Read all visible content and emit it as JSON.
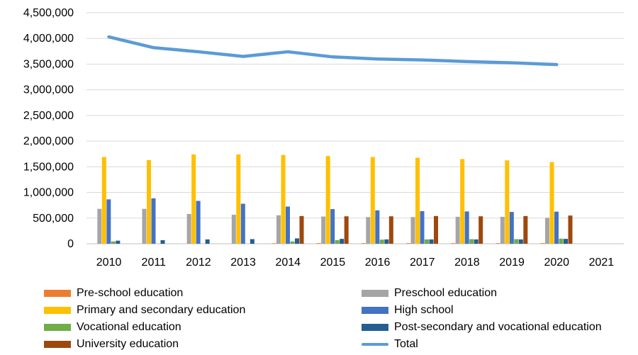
{
  "chart_data": {
    "type": "bar",
    "categories": [
      "2010",
      "2011",
      "2012",
      "2013",
      "2014",
      "2015",
      "2016",
      "2017",
      "2018",
      "2019",
      "2020",
      "2021"
    ],
    "ylim": [
      0,
      4500000
    ],
    "yticks": [
      0,
      500000,
      1000000,
      1500000,
      2000000,
      2500000,
      3000000,
      3500000,
      4000000,
      4500000
    ],
    "ytick_labels": [
      "0",
      "500,000",
      "1,000,000",
      "1,500,000",
      "2,000,000",
      "2,500,000",
      "3,000,000",
      "3,500,000",
      "4,000,000",
      "4,500,000"
    ],
    "grid": true,
    "legend_position": "bottom",
    "series": [
      {
        "name": "Pre-school education",
        "kind": "bar",
        "color": "#ED7D31",
        "values": [
          0,
          0,
          0,
          0,
          10000,
          12000,
          12000,
          12000,
          12000,
          12000,
          12000,
          null
        ]
      },
      {
        "name": "Preschool education",
        "kind": "bar",
        "color": "#A5A5A5",
        "values": [
          680000,
          680000,
          580000,
          565000,
          555000,
          530000,
          520000,
          520000,
          525000,
          525000,
          505000,
          null
        ]
      },
      {
        "name": "Primary and secondary education",
        "kind": "bar",
        "color": "#FFC000",
        "values": [
          1690000,
          1630000,
          1740000,
          1740000,
          1730000,
          1710000,
          1690000,
          1675000,
          1650000,
          1625000,
          1590000,
          null
        ]
      },
      {
        "name": "High school",
        "kind": "bar",
        "color": "#4472C4",
        "values": [
          865000,
          885000,
          835000,
          780000,
          725000,
          675000,
          650000,
          635000,
          630000,
          620000,
          625000,
          null
        ]
      },
      {
        "name": "Vocational education",
        "kind": "bar",
        "color": "#70AD47",
        "values": [
          45000,
          0,
          0,
          0,
          45000,
          70000,
          80000,
          85000,
          90000,
          90000,
          100000,
          null
        ]
      },
      {
        "name": "Post-secondary and vocational education",
        "kind": "bar",
        "color": "#255E91",
        "values": [
          60000,
          70000,
          85000,
          90000,
          105000,
          95000,
          85000,
          85000,
          85000,
          85000,
          95000,
          null
        ]
      },
      {
        "name": "University education",
        "kind": "bar",
        "color": "#9E480E",
        "values": [
          0,
          0,
          0,
          0,
          540000,
          535000,
          535000,
          540000,
          535000,
          540000,
          550000,
          null
        ]
      },
      {
        "name": "Total",
        "kind": "line",
        "color": "#5B9BD5",
        "values": [
          4030000,
          3820000,
          3740000,
          3650000,
          3740000,
          3640000,
          3600000,
          3580000,
          3550000,
          3525000,
          3490000,
          null
        ]
      }
    ]
  }
}
